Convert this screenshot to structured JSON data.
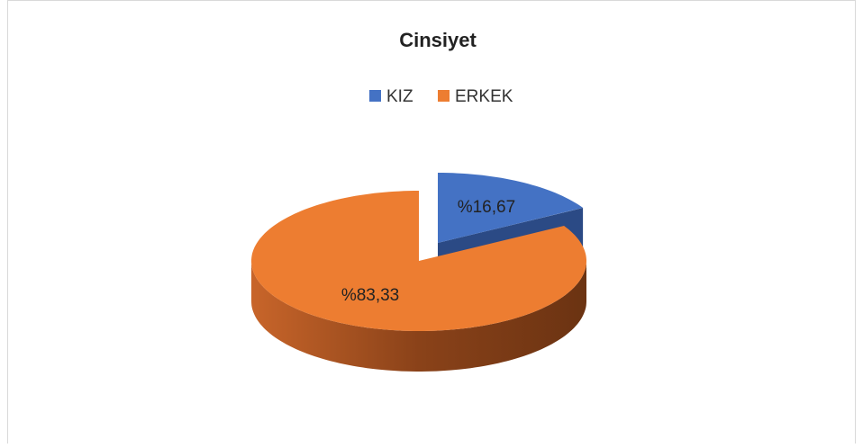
{
  "chart_data": {
    "type": "pie",
    "title": "Cinsiyet",
    "categories": [
      "KIZ",
      "ERKEK"
    ],
    "values": [
      16.67,
      83.33
    ],
    "value_labels": [
      "%16,67",
      "%83,33"
    ],
    "colors": [
      "#4472c4",
      "#ed7d31"
    ],
    "legend": "top"
  }
}
